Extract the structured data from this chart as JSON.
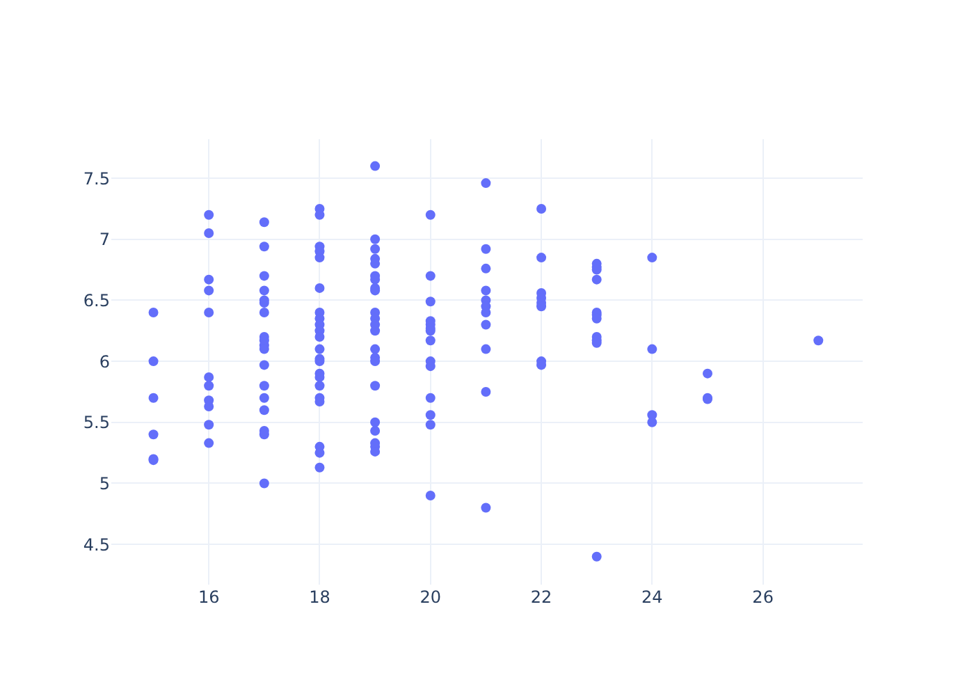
{
  "chart_data": {
    "type": "scatter",
    "marker": "circle",
    "grid": true,
    "legend": false,
    "xlim": [
      14.24,
      27.8
    ],
    "ylim": [
      4.17,
      7.82
    ],
    "xticks": [
      16,
      18,
      20,
      22,
      24,
      26
    ],
    "yticks": [
      4.5,
      5,
      5.5,
      6,
      6.5,
      7,
      7.5
    ],
    "x": [
      15,
      15,
      15,
      15,
      15,
      15,
      16,
      16,
      16,
      16,
      16,
      16,
      16,
      16,
      16,
      16,
      16,
      17,
      17,
      17,
      17,
      17,
      17,
      17,
      17,
      17,
      17,
      17,
      17,
      17,
      17,
      17,
      17,
      17,
      17,
      18,
      18,
      18,
      18,
      18,
      18,
      18,
      18,
      18,
      18,
      18,
      18,
      18,
      18,
      18,
      18,
      18,
      18,
      18,
      18,
      18,
      18,
      19,
      19,
      19,
      19,
      19,
      19,
      19,
      19,
      19,
      19,
      19,
      19,
      19,
      19,
      19,
      19,
      19,
      19,
      19,
      19,
      19,
      19,
      20,
      20,
      20,
      20,
      20,
      20,
      20,
      20,
      20,
      20,
      20,
      20,
      20,
      20,
      21,
      21,
      21,
      21,
      21,
      21,
      21,
      21,
      21,
      21,
      21,
      22,
      22,
      22,
      22,
      22,
      22,
      22,
      22,
      23,
      23,
      23,
      23,
      23,
      23,
      23,
      23,
      23,
      23,
      23,
      24,
      24,
      24,
      24,
      25,
      25,
      25,
      27
    ],
    "series": [
      {
        "color": "#636efa",
        "values": [
          6.4,
          6.0,
          5.7,
          5.4,
          5.2,
          5.19,
          7.2,
          7.05,
          6.67,
          6.58,
          6.4,
          5.87,
          5.8,
          5.68,
          5.63,
          5.48,
          5.33,
          7.14,
          6.94,
          6.7,
          6.58,
          6.5,
          6.48,
          6.4,
          6.2,
          6.17,
          6.13,
          6.1,
          5.97,
          5.8,
          5.7,
          5.6,
          5.43,
          5.4,
          5.0,
          7.25,
          7.2,
          6.94,
          6.9,
          6.85,
          6.6,
          6.4,
          6.35,
          6.3,
          6.25,
          6.2,
          6.1,
          6.02,
          6.0,
          5.9,
          5.87,
          5.8,
          5.7,
          5.67,
          5.3,
          5.25,
          5.13,
          7.6,
          7.0,
          6.92,
          6.84,
          6.8,
          6.7,
          6.67,
          6.6,
          6.58,
          6.4,
          6.35,
          6.3,
          6.25,
          6.1,
          6.03,
          6.0,
          5.8,
          5.5,
          5.43,
          5.33,
          5.3,
          5.26,
          7.2,
          6.7,
          6.49,
          6.33,
          6.3,
          6.27,
          6.25,
          6.17,
          6.0,
          5.96,
          5.7,
          5.56,
          5.48,
          4.9,
          7.46,
          6.92,
          6.76,
          6.58,
          6.5,
          6.45,
          6.4,
          6.3,
          6.1,
          5.75,
          4.8,
          7.25,
          6.85,
          6.56,
          6.52,
          6.48,
          6.45,
          6.0,
          5.97,
          6.8,
          6.77,
          6.75,
          6.67,
          6.4,
          6.38,
          6.35,
          6.2,
          6.17,
          6.15,
          4.4,
          6.85,
          6.1,
          5.56,
          5.5,
          5.9,
          5.7,
          5.69,
          6.17
        ]
      }
    ]
  }
}
